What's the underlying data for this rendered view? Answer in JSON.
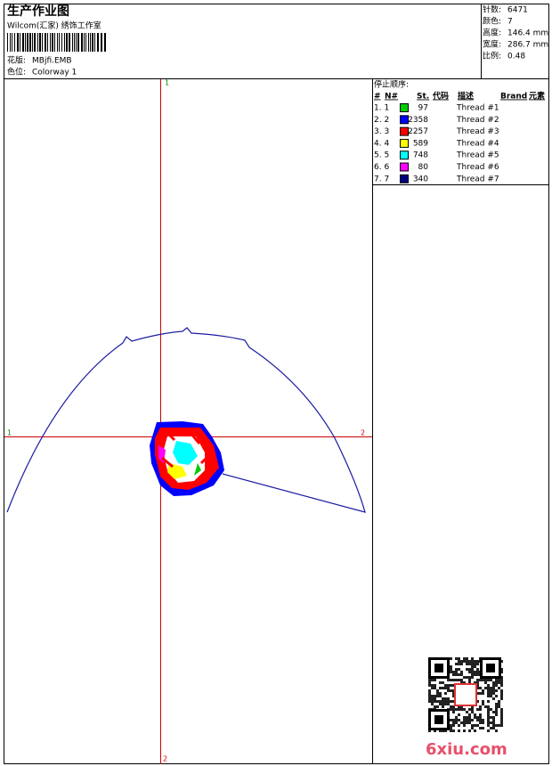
{
  "header": {
    "title": "生产作业图",
    "studio": "Wilcom(汇家) 绣饰工作室",
    "design_label": "花版:",
    "design_file": "MBjfi.EMB",
    "colorway_label": "色位:",
    "colorway": "Colorway 1"
  },
  "summary": [
    {
      "label": "针数:",
      "value": "6471"
    },
    {
      "label": "颜色:",
      "value": "7"
    },
    {
      "label": "高度:",
      "value": "146.4 mm"
    },
    {
      "label": "宽度:",
      "value": "286.7 mm"
    },
    {
      "label": "比例:",
      "value": "0.48"
    }
  ],
  "stop_sequence": {
    "title": "停止顺序:",
    "columns": [
      "#",
      "N#",
      "St.",
      "代码",
      "描述",
      "Brand",
      "元素"
    ],
    "rows": [
      {
        "index": "1. 1",
        "color": "#00cc00",
        "stitches": "97",
        "description": "Thread #1"
      },
      {
        "index": "2. 2",
        "color": "#0000ff",
        "stitches": "2358",
        "description": "Thread #2"
      },
      {
        "index": "3. 3",
        "color": "#ff0000",
        "stitches": "2257",
        "description": "Thread #3"
      },
      {
        "index": "4. 4",
        "color": "#ffff00",
        "stitches": "589",
        "description": "Thread #4"
      },
      {
        "index": "5. 5",
        "color": "#00ffff",
        "stitches": "748",
        "description": "Thread #5"
      },
      {
        "index": "6. 6",
        "color": "#ff00ff",
        "stitches": "80",
        "description": "Thread #6"
      },
      {
        "index": "7. 7",
        "color": "#000080",
        "stitches": "340",
        "description": "Thread #7"
      }
    ]
  },
  "axis_markers": {
    "top": "1",
    "left": "1",
    "right": "2",
    "bottom": "2"
  },
  "watermark": "6xiu.com"
}
